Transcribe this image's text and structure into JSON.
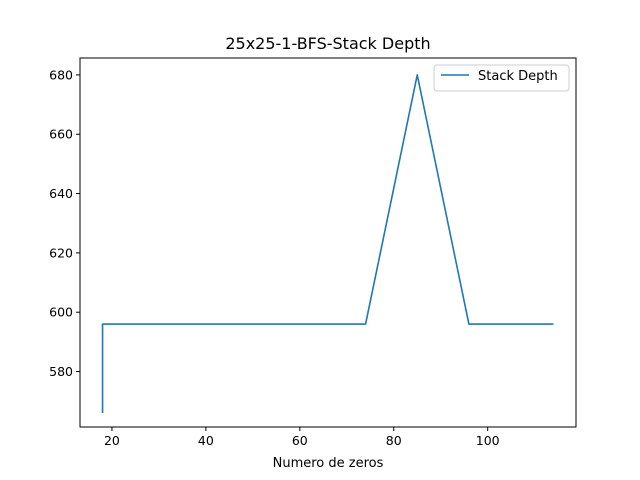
{
  "chart_data": {
    "type": "line",
    "title": "25x25-1-BFS-Stack Depth",
    "xlabel": "Numero de zeros",
    "ylabel": "",
    "xlim": [
      13.2,
      118.8
    ],
    "ylim": [
      561.3,
      685.7
    ],
    "x_ticks": [
      20,
      40,
      60,
      80,
      100
    ],
    "y_ticks": [
      580,
      600,
      620,
      640,
      660,
      680
    ],
    "grid": false,
    "legend_position": "top-right",
    "series": [
      {
        "name": "Stack Depth",
        "color": "#1f77b4",
        "x": [
          18,
          18,
          74,
          85,
          96,
          114
        ],
        "y": [
          566,
          596,
          596,
          680,
          596,
          596
        ]
      }
    ]
  }
}
